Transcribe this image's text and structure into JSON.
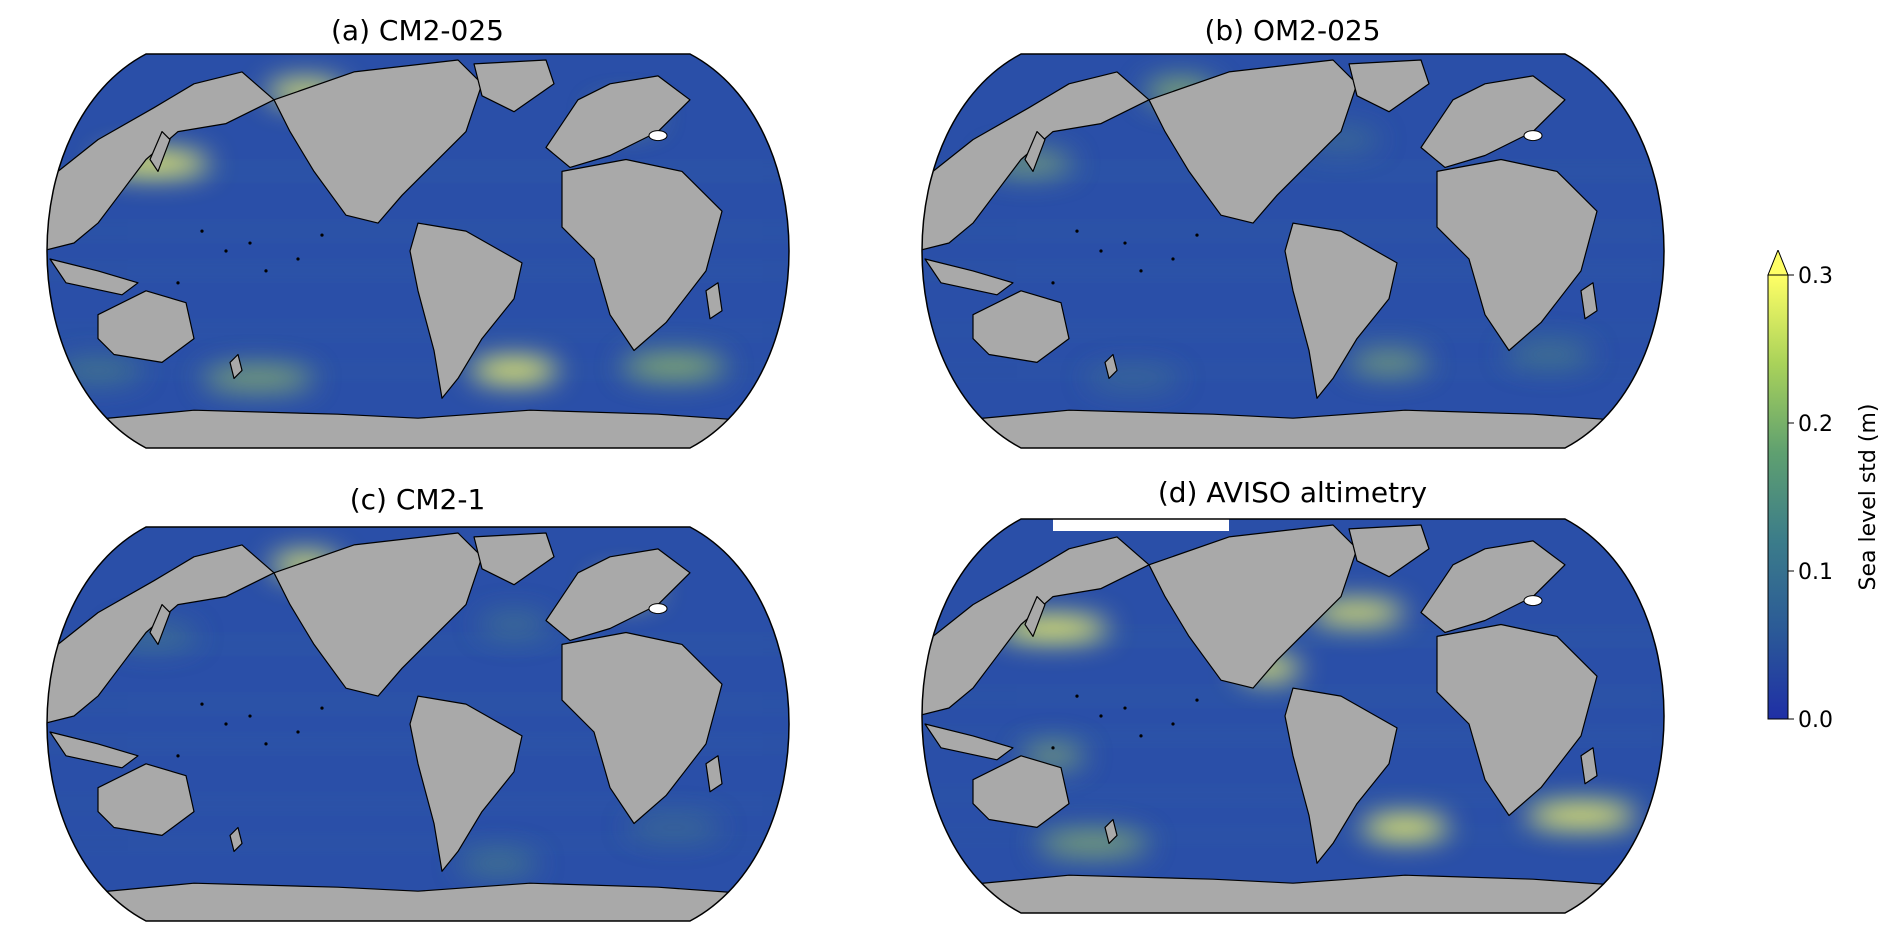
{
  "panels": [
    {
      "title": "(a) CM2-025"
    },
    {
      "title": "(b) OM2-025"
    },
    {
      "title": "(c) CM2-1"
    },
    {
      "title": "(d) AVISO altimetry"
    }
  ],
  "colorbar": {
    "label": "Sea level std (m)",
    "ticks": [
      "0.0",
      "0.1",
      "0.2",
      "0.3"
    ],
    "min": 0.0,
    "max": 0.3,
    "extend": "max",
    "colors": [
      "#1f2fa6",
      "#2b5a97",
      "#3b7c8a",
      "#5fa070",
      "#a9d25a",
      "#ffff66"
    ]
  },
  "colors": {
    "land": "#a9a9a9",
    "ocean": "#2a4fa8",
    "coast": "#000000",
    "missing": "#ffffff"
  }
}
